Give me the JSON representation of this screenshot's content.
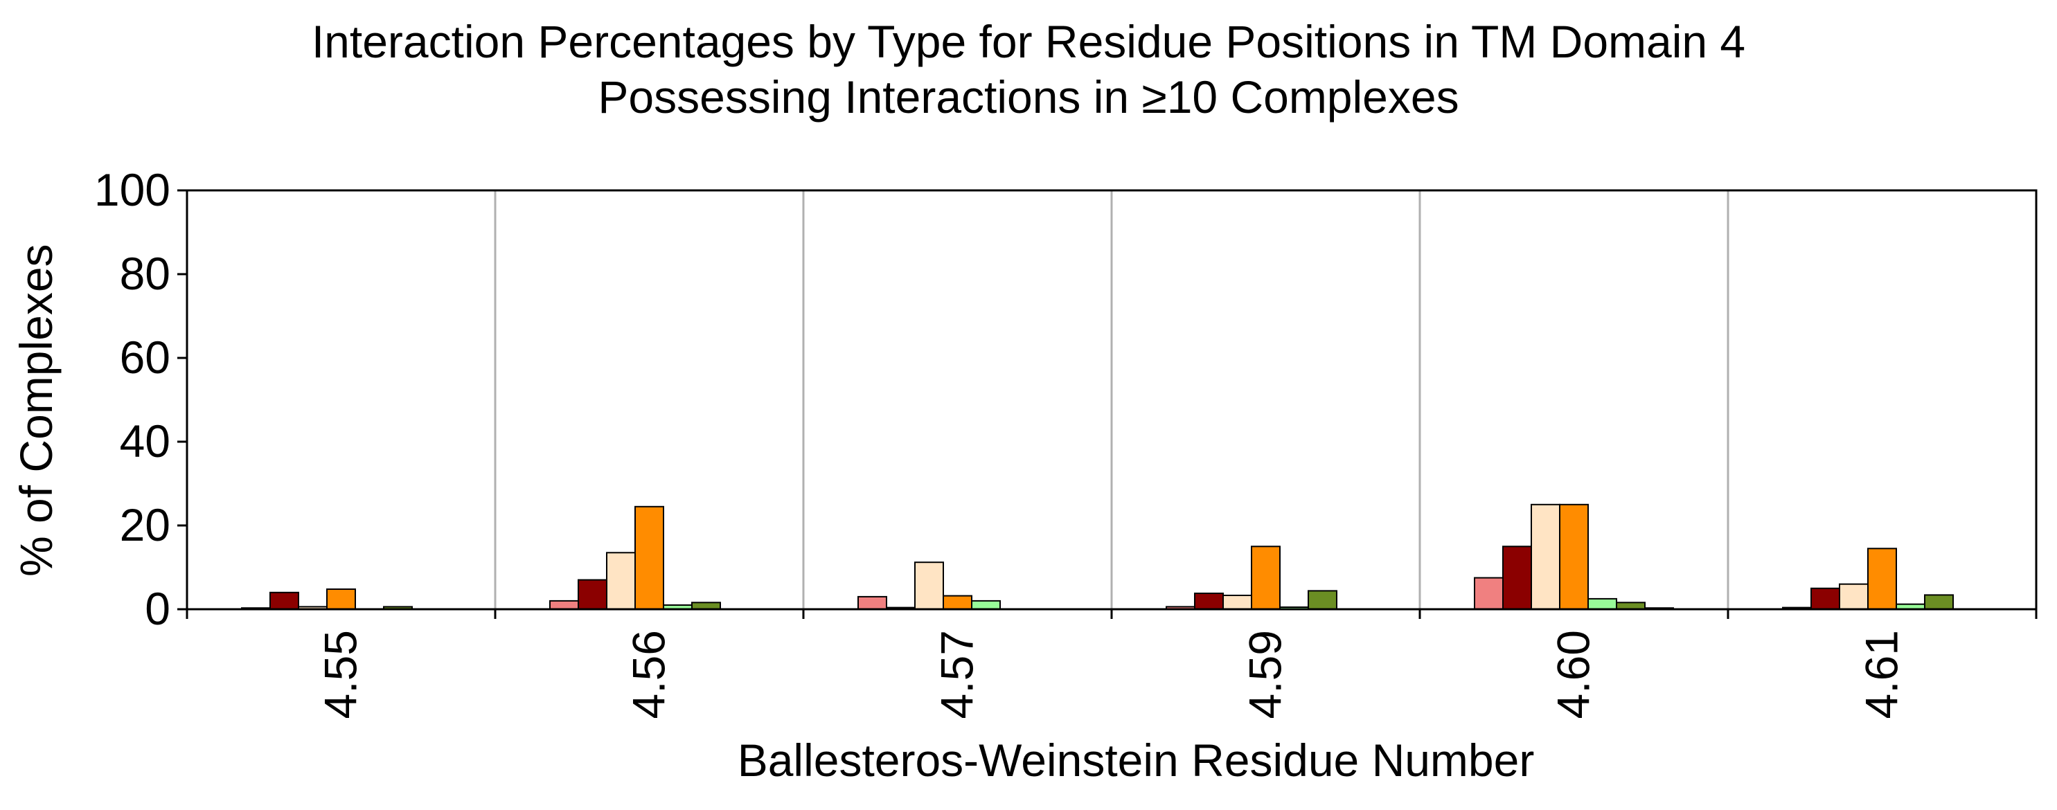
{
  "chart_data": {
    "type": "bar",
    "title_lines": [
      "Interaction Percentages by Type for Residue Positions in TM Domain 4",
      "Possessing Interactions in ≥10 Complexes"
    ],
    "xlabel": "Ballesteros-Weinstein Residue Number",
    "ylabel": "% of Complexes",
    "ylim": [
      0,
      100
    ],
    "yticks": [
      "0",
      "20",
      "40",
      "60",
      "80",
      "100"
    ],
    "categories": [
      "4.55",
      "4.56",
      "4.57",
      "4.59",
      "4.60",
      "4.61"
    ],
    "grid": "vertical lines between categories",
    "legend": "none",
    "series": [
      {
        "color": "#f08080",
        "values": [
          0.3,
          2.0,
          3.0,
          0.6,
          7.5,
          0.4
        ]
      },
      {
        "color": "#8b0000",
        "values": [
          4.0,
          7.0,
          0.4,
          3.8,
          15.0,
          5.0
        ]
      },
      {
        "color": "#ffe4c4",
        "values": [
          0.6,
          13.5,
          11.2,
          3.3,
          25.0,
          6.0
        ]
      },
      {
        "color": "#ff8c00",
        "values": [
          4.8,
          24.5,
          3.2,
          15.0,
          25.0,
          14.5
        ]
      },
      {
        "color": "#98fb98",
        "values": [
          0,
          1.0,
          2.0,
          0.5,
          2.5,
          1.2
        ]
      },
      {
        "color": "#6b8e23",
        "values": [
          0.6,
          1.6,
          0,
          4.4,
          1.6,
          3.4
        ]
      },
      {
        "color": "#2e4a2e",
        "values": [
          0,
          0,
          0,
          0,
          0.3,
          0
        ]
      }
    ]
  }
}
